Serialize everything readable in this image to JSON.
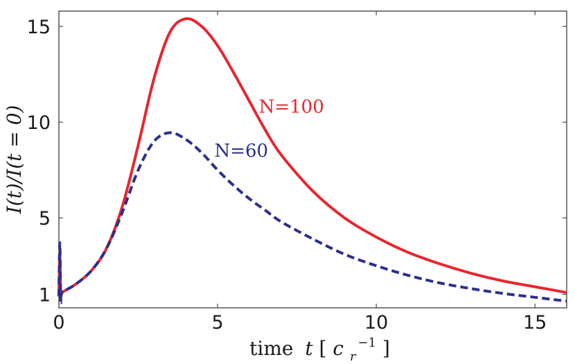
{
  "chart_data": {
    "type": "line",
    "title": "",
    "xlabel_prefix": "time",
    "xlabel_var": "t",
    "xlabel_unit_base": "c",
    "xlabel_unit_sub": "r",
    "xlabel_unit_sup": "−1",
    "ylabel": "I(t)/I(t = 0)",
    "xlim": [
      0,
      16
    ],
    "ylim": [
      0.3,
      15.8
    ],
    "xticks": [
      0,
      5,
      10,
      15
    ],
    "xtick_labels": [
      "0",
      "5",
      "10",
      "15"
    ],
    "yticks": [
      1,
      5,
      10,
      15
    ],
    "ytick_labels": [
      "1",
      "5",
      "10",
      "15"
    ],
    "grid": false,
    "series": [
      {
        "name": "N=100",
        "color": "#e8262e",
        "style": "solid",
        "x": [
          0,
          0.03,
          0.06,
          0.1,
          0.5,
          1.0,
          1.5,
          2.0,
          2.5,
          3.0,
          3.5,
          4.0,
          4.5,
          5.0,
          5.5,
          6.0,
          6.5,
          7.0,
          8.0,
          9.0,
          10.0,
          11.0,
          12.0,
          13.0,
          14.0,
          15.0,
          16.0
        ],
        "values": [
          1.0,
          3.2,
          0.8,
          1.1,
          1.5,
          2.2,
          3.4,
          5.6,
          8.8,
          12.3,
          14.7,
          15.4,
          15.0,
          14.0,
          12.6,
          11.1,
          9.6,
          8.3,
          6.4,
          5.0,
          4.0,
          3.2,
          2.6,
          2.1,
          1.7,
          1.4,
          1.1
        ]
      },
      {
        "name": "N=60",
        "color": "#2a2f8f",
        "style": "dashed",
        "x": [
          0,
          0.03,
          0.06,
          0.1,
          0.5,
          1.0,
          1.5,
          2.0,
          2.5,
          3.0,
          3.5,
          4.0,
          4.5,
          5.0,
          5.5,
          6.0,
          6.5,
          7.0,
          8.0,
          9.0,
          10.0,
          11.0,
          12.0,
          13.0,
          14.0,
          15.0,
          16.0
        ],
        "values": [
          0.9,
          3.7,
          0.7,
          1.1,
          1.5,
          2.2,
          3.4,
          5.3,
          7.5,
          9.0,
          9.45,
          9.1,
          8.4,
          7.5,
          6.7,
          6.0,
          5.4,
          4.8,
          3.9,
          3.1,
          2.5,
          2.0,
          1.6,
          1.3,
          1.05,
          0.85,
          0.65
        ]
      }
    ],
    "annotations": [
      {
        "text": "N=100",
        "series": 0,
        "x": 6.3,
        "y": 10.5
      },
      {
        "text": "N=60",
        "series": 1,
        "x": 4.9,
        "y": 8.2
      }
    ]
  }
}
